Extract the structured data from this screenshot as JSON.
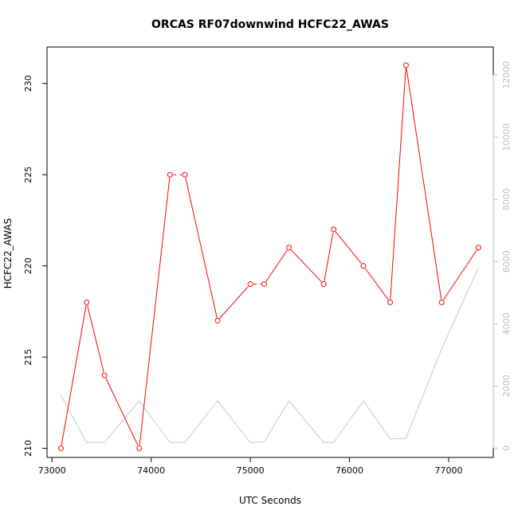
{
  "chart_data": {
    "type": "line",
    "title": "ORCAS RF07downwind HCFC22_AWAS",
    "xlabel": "UTC Seconds",
    "ylabel": "HCFC22_AWAS",
    "xlim": [
      72950,
      77450
    ],
    "ylim": [
      209.5,
      232.0
    ],
    "ylim_right": [
      -300,
      12900
    ],
    "x_ticks": [
      73000,
      74000,
      75000,
      76000,
      77000
    ],
    "y_ticks": [
      210,
      215,
      220,
      225,
      230
    ],
    "y_ticks_right": [
      0,
      2000,
      4000,
      6000,
      8000,
      10000,
      12000
    ],
    "colors": {
      "primary": "#ff0000",
      "secondary": "#c8c8c8",
      "right_axis": "#bdbdbd"
    },
    "series": [
      {
        "values": [
          {
            "x": 73090,
            "y": 210
          },
          {
            "x": 73350,
            "y": 218
          },
          {
            "x": 73530,
            "y": 214
          },
          {
            "x": 73880,
            "y": 210
          },
          {
            "x": 74190,
            "y": 225
          },
          {
            "x": 74340,
            "y": 225
          },
          {
            "x": 74670,
            "y": 217
          },
          {
            "x": 75000,
            "y": 219
          },
          {
            "x": 75140,
            "y": 219
          },
          {
            "x": 75390,
            "y": 221
          },
          {
            "x": 75740,
            "y": 219
          },
          {
            "x": 75840,
            "y": 222
          },
          {
            "x": 76140,
            "y": 220
          },
          {
            "x": 76410,
            "y": 218
          },
          {
            "x": 76570,
            "y": 231
          },
          {
            "x": 76930,
            "y": 218
          },
          {
            "x": 77300,
            "y": 221
          }
        ],
        "segment_breaks_after": [
          4,
          7
        ]
      },
      {
        "axis": "right",
        "values": [
          {
            "x": 73090,
            "y": 1700
          },
          {
            "x": 73350,
            "y": 180
          },
          {
            "x": 73530,
            "y": 180
          },
          {
            "x": 73880,
            "y": 1520
          },
          {
            "x": 74190,
            "y": 180
          },
          {
            "x": 74340,
            "y": 180
          },
          {
            "x": 74670,
            "y": 1520
          },
          {
            "x": 75000,
            "y": 180
          },
          {
            "x": 75140,
            "y": 200
          },
          {
            "x": 75390,
            "y": 1520
          },
          {
            "x": 75740,
            "y": 180
          },
          {
            "x": 75840,
            "y": 180
          },
          {
            "x": 76140,
            "y": 1520
          },
          {
            "x": 76410,
            "y": 300
          },
          {
            "x": 76570,
            "y": 320
          },
          {
            "x": 76930,
            "y": 3200
          },
          {
            "x": 77300,
            "y": 5800
          }
        ]
      }
    ]
  }
}
